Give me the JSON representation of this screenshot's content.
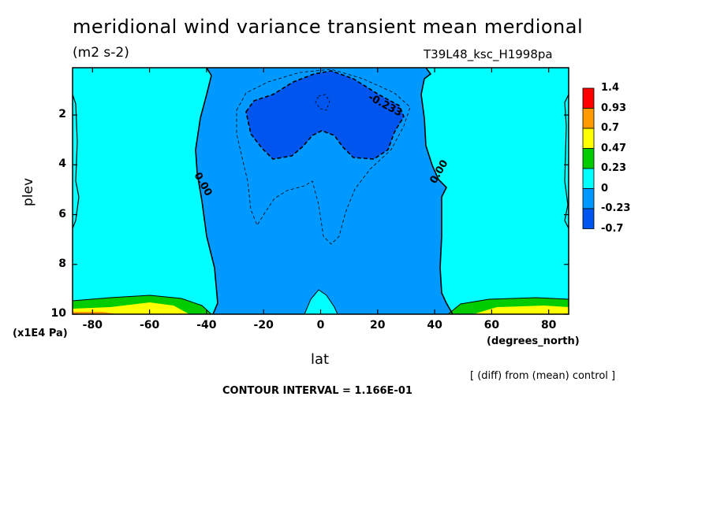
{
  "chart_data": {
    "type": "heatmap",
    "title": "meridional wind variance transient mean merdional",
    "units": "(m2 s-2)",
    "run_label": "T39L48_ksc_H1998pa",
    "xlabel": "lat",
    "x_units": "(degrees_north)",
    "ylabel": "plev",
    "y_units": "(x1E4 Pa)",
    "x_range": [
      -87,
      87
    ],
    "y_range": [
      0.1,
      10
    ],
    "y_inverted": true,
    "x_ticks": [
      -80,
      -60,
      -40,
      -20,
      0,
      20,
      40,
      60,
      80
    ],
    "x_tick_labels": [
      "-80",
      "-60",
      "-40",
      "-20",
      "0",
      "20",
      "40",
      "60",
      "80"
    ],
    "y_ticks": [
      2,
      4,
      6,
      8,
      10
    ],
    "y_tick_labels": [
      "2",
      "4",
      "6",
      "8",
      "10"
    ],
    "legend": {
      "placement": "right",
      "labels": [
        "1.4",
        "0.93",
        "0.7",
        "0.47",
        "0.23",
        "0",
        "-0.23",
        "-0.7"
      ],
      "colors": [
        "#ff0000",
        "#ff9900",
        "#ffff00",
        "#00cc00",
        "#00ffff",
        "#0099ff",
        "#0055ee"
      ]
    },
    "regions": [
      {
        "level": "0.00 to 0.23",
        "extent": "lat -87 to -45 and 45 to 87, plev 0.1 to 9.6",
        "color": "#00ffff"
      },
      {
        "level": "-0.23 to 0.00",
        "extent": "lat -45 to 45, plev 0.1 to 10",
        "color": "#0099ff"
      },
      {
        "level": "< -0.23",
        "extent": "lat -27 to 30, plev 1.8 to 3.8",
        "color": "#0055ee"
      },
      {
        "level": "0.23 to 0.47",
        "extent": "lat -87 to -43 and 47 to 87, plev 9.5 to 10",
        "color": "#00cc00"
      },
      {
        "level": "0.47 to 0.7",
        "extent": "lat -75 to -50 and 60 to 87, plev 9.7 to 10",
        "color": "#ffff00"
      }
    ],
    "contour_labels": [
      "-0.233",
      "0.00",
      "0.00"
    ],
    "annotation": "[ (diff) from (mean) control ]",
    "contour_interval": "CONTOUR INTERVAL = 1.166E-01"
  }
}
